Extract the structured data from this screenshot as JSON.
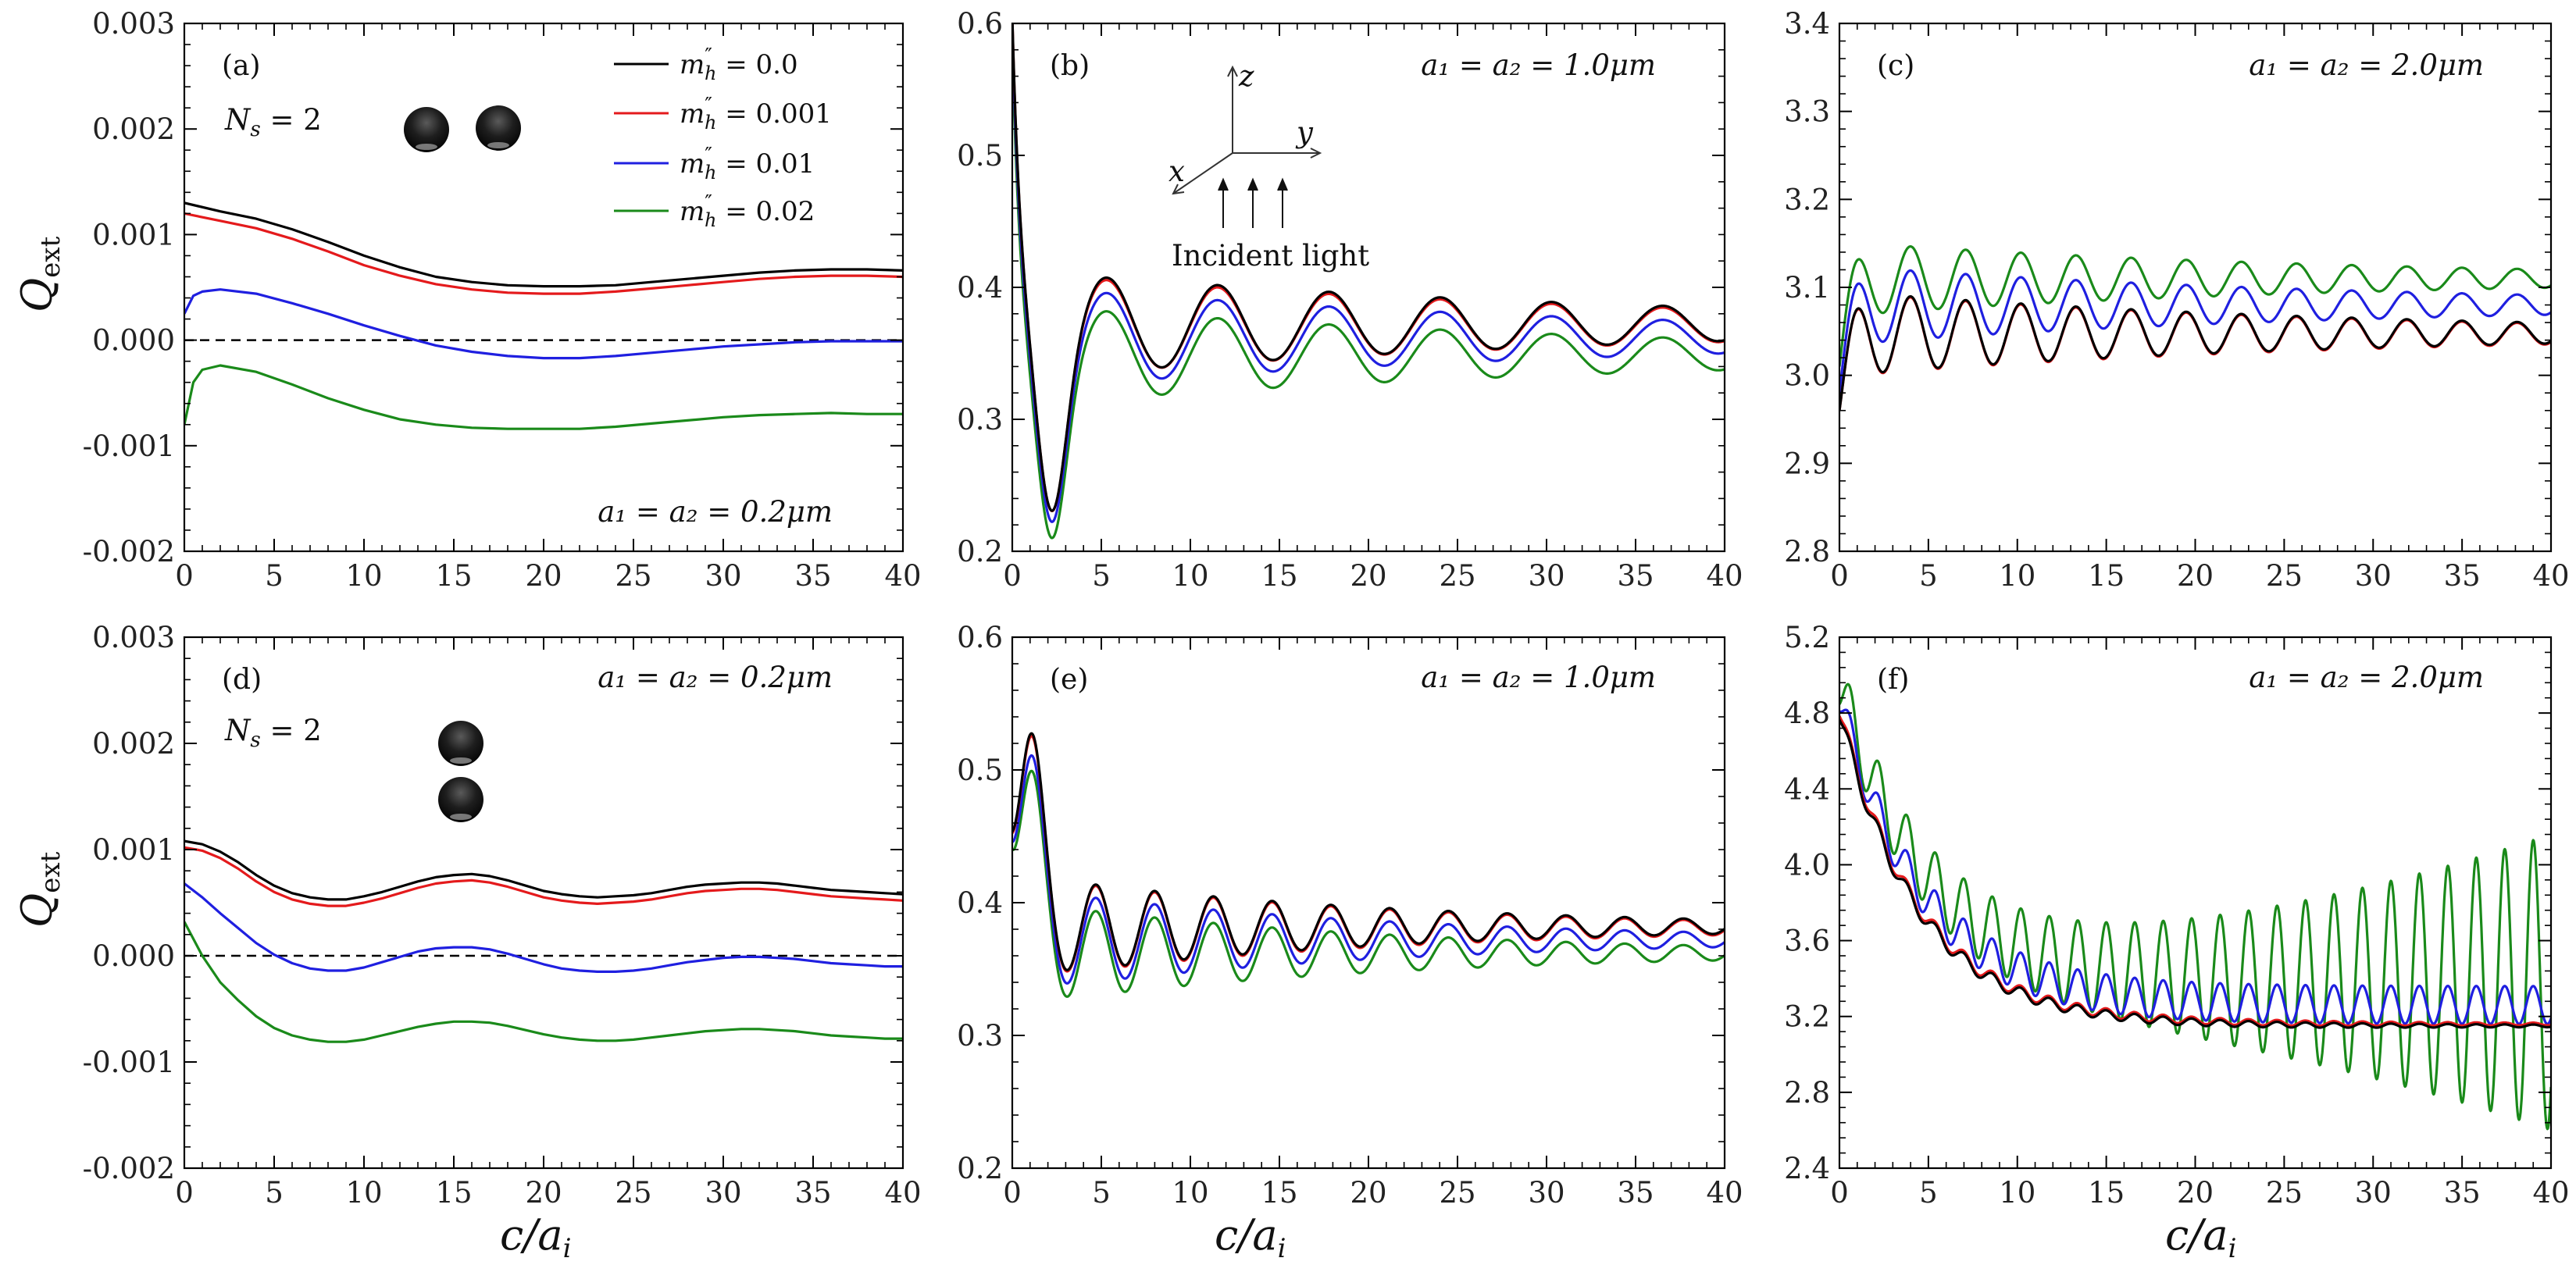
{
  "figure": {
    "ylabel_main": "Q",
    "ylabel_sub": "ext",
    "xlabel_main": "c/a",
    "xlabel_sub": "i",
    "ns_main": "N",
    "ns_sub": "s",
    "ns_rest": " = 2",
    "inset_axis_x": "x",
    "inset_axis_y": "y",
    "inset_axis_z": "z",
    "inset_incident": "Incident light",
    "legend_entries": [
      {
        "label_main": "m",
        "label_sup": "″",
        "label_sub": "h",
        "label_value": " = 0.0",
        "color": "#000000"
      },
      {
        "label_main": "m",
        "label_sup": "″",
        "label_sub": "h",
        "label_value": " = 0.001",
        "color": "#e41a1c"
      },
      {
        "label_main": "m",
        "label_sup": "″",
        "label_sub": "h",
        "label_value": " = 0.01",
        "color": "#1f1fe0"
      },
      {
        "label_main": "m",
        "label_sup": "″",
        "label_sub": "h",
        "label_value": " = 0.02",
        "color": "#1a8a1a"
      }
    ]
  },
  "chart_data": [
    {
      "type": "line",
      "panel": "(a)",
      "radius": "a₁ = a₂ = 0.2μm",
      "xlim": [
        0,
        40
      ],
      "ylim": [
        -0.002,
        0.003
      ],
      "xticks": [
        "0",
        "5",
        "10",
        "15",
        "20",
        "25",
        "30",
        "35",
        "40"
      ],
      "yticks": [
        "-0.002",
        "-0.001",
        "0.000",
        "0.001",
        "0.002",
        "0.003"
      ],
      "zero_line": true,
      "series": [
        {
          "name": "m''_h = 0.0",
          "color": "#000000",
          "x": [
            0,
            2,
            4,
            6,
            8,
            10,
            12,
            14,
            16,
            18,
            20,
            22,
            24,
            26,
            28,
            30,
            32,
            34,
            36,
            38,
            40
          ],
          "y": [
            0.0013,
            0.00122,
            0.00115,
            0.00105,
            0.00093,
            0.0008,
            0.00069,
            0.0006,
            0.00055,
            0.00052,
            0.00051,
            0.00051,
            0.00052,
            0.00055,
            0.00058,
            0.00061,
            0.00064,
            0.00066,
            0.00067,
            0.00067,
            0.00066
          ]
        },
        {
          "name": "m''_h = 0.001",
          "color": "#e41a1c",
          "x": [
            0,
            2,
            4,
            6,
            8,
            10,
            12,
            14,
            16,
            18,
            20,
            22,
            24,
            26,
            28,
            30,
            32,
            34,
            36,
            38,
            40
          ],
          "y": [
            0.0012,
            0.00113,
            0.00106,
            0.00096,
            0.00084,
            0.00071,
            0.00061,
            0.00053,
            0.00048,
            0.00045,
            0.00044,
            0.00044,
            0.00046,
            0.00049,
            0.00052,
            0.00055,
            0.00058,
            0.0006,
            0.00061,
            0.00061,
            0.0006
          ]
        },
        {
          "name": "m''_h = 0.01",
          "color": "#1f1fe0",
          "x": [
            0,
            0.5,
            1,
            2,
            4,
            6,
            8,
            10,
            12,
            14,
            16,
            18,
            20,
            22,
            24,
            26,
            28,
            30,
            32,
            34,
            36,
            38,
            40
          ],
          "y": [
            0.00025,
            0.00042,
            0.00046,
            0.00048,
            0.00044,
            0.00035,
            0.00025,
            0.00014,
            4e-05,
            -5e-05,
            -0.00011,
            -0.00015,
            -0.00017,
            -0.00017,
            -0.00015,
            -0.00012,
            -9e-05,
            -6e-05,
            -4e-05,
            -2e-05,
            -1e-05,
            -1e-05,
            -1e-05
          ]
        },
        {
          "name": "m''_h = 0.02",
          "color": "#1a8a1a",
          "x": [
            0,
            0.5,
            1,
            2,
            4,
            6,
            8,
            10,
            12,
            14,
            16,
            18,
            20,
            22,
            24,
            26,
            28,
            30,
            32,
            34,
            36,
            38,
            40
          ],
          "y": [
            -0.0008,
            -0.0004,
            -0.00028,
            -0.00024,
            -0.0003,
            -0.00042,
            -0.00055,
            -0.00066,
            -0.00075,
            -0.0008,
            -0.00083,
            -0.00084,
            -0.00084,
            -0.00084,
            -0.00082,
            -0.00079,
            -0.00076,
            -0.00073,
            -0.00071,
            -0.0007,
            -0.00069,
            -0.0007,
            -0.0007
          ]
        }
      ]
    },
    {
      "type": "line",
      "panel": "(b)",
      "radius": "a₁ = a₂ = 1.0μm",
      "xlim": [
        0,
        40
      ],
      "ylim": [
        0.2,
        0.6
      ],
      "xticks": [
        "0",
        "5",
        "10",
        "15",
        "20",
        "25",
        "30",
        "35",
        "40"
      ],
      "yticks": [
        "0.2",
        "0.3",
        "0.4",
        "0.5",
        "0.6"
      ],
      "zero_line": false,
      "wave": {
        "mode": "lowdamp",
        "A0": 0.235,
        "decay": 2.2,
        "kick": 0.11,
        "period": 6.25,
        "damp": 0.03
      },
      "series": [
        {
          "name": "m''_h = 0.0",
          "color": "#000000",
          "base": 0.372,
          "amp": 0.042
        },
        {
          "name": "m''_h = 0.001",
          "color": "#e41a1c",
          "base": 0.371,
          "amp": 0.041
        },
        {
          "name": "m''_h = 0.01",
          "color": "#1f1fe0",
          "base": 0.362,
          "amp": 0.04
        },
        {
          "name": "m''_h = 0.02",
          "color": "#1a8a1a",
          "base": 0.349,
          "amp": 0.039
        }
      ]
    },
    {
      "type": "line",
      "panel": "(c)",
      "radius": "a₁ = a₂ = 2.0μm",
      "xlim": [
        0,
        40
      ],
      "ylim": [
        2.8,
        3.4
      ],
      "xticks": [
        "0",
        "5",
        "10",
        "15",
        "20",
        "25",
        "30",
        "35",
        "40"
      ],
      "yticks": [
        "2.8",
        "2.9",
        "3.0",
        "3.1",
        "3.2",
        "3.3",
        "3.4"
      ],
      "zero_line": false,
      "wave": {
        "mode": "osc",
        "period": 3.1,
        "rise": 0.5,
        "damp": 0.035
      },
      "series": [
        {
          "name": "m''_h = 0.0",
          "color": "#000000",
          "base": 3.048,
          "amp": 0.048,
          "start": 2.96
        },
        {
          "name": "m''_h = 0.001",
          "color": "#e41a1c",
          "base": 3.047,
          "amp": 0.048,
          "start": 2.96
        },
        {
          "name": "m''_h = 0.01",
          "color": "#1f1fe0",
          "base": 3.08,
          "amp": 0.045,
          "start": 2.98
        },
        {
          "name": "m''_h = 0.02",
          "color": "#1a8a1a",
          "base": 3.11,
          "amp": 0.042,
          "start": 3.01
        }
      ]
    },
    {
      "type": "line",
      "panel": "(d)",
      "radius": "a₁ = a₂ = 0.2μm",
      "xlim": [
        0,
        40
      ],
      "ylim": [
        -0.002,
        0.003
      ],
      "xticks": [
        "0",
        "5",
        "10",
        "15",
        "20",
        "25",
        "30",
        "35",
        "40"
      ],
      "yticks": [
        "-0.002",
        "-0.001",
        "0.000",
        "0.001",
        "0.002",
        "0.003"
      ],
      "zero_line": true,
      "series": [
        {
          "name": "m''_h = 0.0",
          "color": "#000000",
          "x": [
            0,
            1,
            2,
            3,
            4,
            5,
            6,
            7,
            8,
            9,
            10,
            11,
            12,
            13,
            14,
            15,
            16,
            17,
            18,
            19,
            20,
            21,
            22,
            23,
            24,
            25,
            26,
            27,
            28,
            29,
            30,
            31,
            32,
            33,
            34,
            35,
            36,
            37,
            38,
            39,
            40
          ],
          "y": [
            0.00108,
            0.00105,
            0.00098,
            0.00088,
            0.00076,
            0.00066,
            0.00059,
            0.00055,
            0.00053,
            0.00053,
            0.00056,
            0.0006,
            0.00065,
            0.0007,
            0.00074,
            0.00076,
            0.00077,
            0.00075,
            0.00071,
            0.00066,
            0.00061,
            0.00058,
            0.00056,
            0.00055,
            0.00056,
            0.00057,
            0.00059,
            0.00062,
            0.00065,
            0.00067,
            0.00068,
            0.00069,
            0.00069,
            0.00068,
            0.00066,
            0.00064,
            0.00062,
            0.00061,
            0.0006,
            0.00059,
            0.00058
          ]
        },
        {
          "name": "m''_h = 0.001",
          "color": "#e41a1c",
          "x": [
            0,
            1,
            2,
            3,
            4,
            5,
            6,
            7,
            8,
            9,
            10,
            11,
            12,
            13,
            14,
            15,
            16,
            17,
            18,
            19,
            20,
            21,
            22,
            23,
            24,
            25,
            26,
            27,
            28,
            29,
            30,
            31,
            32,
            33,
            34,
            35,
            36,
            37,
            38,
            39,
            40
          ],
          "y": [
            0.00102,
            0.00099,
            0.00092,
            0.00082,
            0.0007,
            0.0006,
            0.00053,
            0.00049,
            0.00047,
            0.00047,
            0.0005,
            0.00054,
            0.00059,
            0.00064,
            0.00068,
            0.0007,
            0.00071,
            0.00069,
            0.00065,
            0.0006,
            0.00055,
            0.00052,
            0.0005,
            0.00049,
            0.0005,
            0.00051,
            0.00053,
            0.00056,
            0.00059,
            0.00061,
            0.00062,
            0.00063,
            0.00063,
            0.00062,
            0.0006,
            0.00058,
            0.00056,
            0.00055,
            0.00054,
            0.00053,
            0.00052
          ]
        },
        {
          "name": "m''_h = 0.01",
          "color": "#1f1fe0",
          "x": [
            0,
            1,
            2,
            3,
            4,
            5,
            6,
            7,
            8,
            9,
            10,
            11,
            12,
            13,
            14,
            15,
            16,
            17,
            18,
            19,
            20,
            21,
            22,
            23,
            24,
            25,
            26,
            27,
            28,
            29,
            30,
            31,
            32,
            33,
            34,
            35,
            36,
            37,
            38,
            39,
            40
          ],
          "y": [
            0.00068,
            0.00055,
            0.0004,
            0.00026,
            0.00012,
            1e-05,
            -7e-05,
            -0.00012,
            -0.00014,
            -0.00014,
            -0.00011,
            -6e-05,
            -1e-05,
            4e-05,
            7e-05,
            8e-05,
            8e-05,
            6e-05,
            2e-05,
            -3e-05,
            -8e-05,
            -0.00012,
            -0.00014,
            -0.00015,
            -0.00015,
            -0.00014,
            -0.00012,
            -9e-05,
            -6e-05,
            -4e-05,
            -2e-05,
            -1e-05,
            -1e-05,
            -2e-05,
            -3e-05,
            -5e-05,
            -7e-05,
            -8e-05,
            -9e-05,
            -0.0001,
            -0.0001
          ]
        },
        {
          "name": "m''_h = 0.02",
          "color": "#1a8a1a",
          "x": [
            0,
            1,
            2,
            3,
            4,
            5,
            6,
            7,
            8,
            9,
            10,
            11,
            12,
            13,
            14,
            15,
            16,
            17,
            18,
            19,
            20,
            21,
            22,
            23,
            24,
            25,
            26,
            27,
            28,
            29,
            30,
            31,
            32,
            33,
            34,
            35,
            36,
            37,
            38,
            39,
            40
          ],
          "y": [
            0.00032,
            0.0,
            -0.00025,
            -0.00042,
            -0.00057,
            -0.00068,
            -0.00075,
            -0.00079,
            -0.00081,
            -0.00081,
            -0.00079,
            -0.00075,
            -0.00071,
            -0.00067,
            -0.00064,
            -0.00062,
            -0.00062,
            -0.00063,
            -0.00066,
            -0.0007,
            -0.00074,
            -0.00077,
            -0.00079,
            -0.0008,
            -0.0008,
            -0.00079,
            -0.00077,
            -0.00075,
            -0.00073,
            -0.00071,
            -0.0007,
            -0.00069,
            -0.00069,
            -0.0007,
            -0.00071,
            -0.00073,
            -0.00075,
            -0.00076,
            -0.00077,
            -0.00078,
            -0.00078
          ]
        }
      ]
    },
    {
      "type": "line",
      "panel": "(e)",
      "radius": "a₁ = a₂ = 1.0μm",
      "xlim": [
        0,
        40
      ],
      "ylim": [
        0.2,
        0.6
      ],
      "xticks": [
        "0",
        "5",
        "10",
        "15",
        "20",
        "25",
        "30",
        "35",
        "40"
      ],
      "yticks": [
        "0.2",
        "0.3",
        "0.4",
        "0.5",
        "0.6"
      ],
      "zero_line": false,
      "wave": {
        "mode": "peak",
        "period": 3.3,
        "damp": 0.05,
        "peakx": 1.0,
        "peakw": 0.9
      },
      "series": [
        {
          "name": "m''_h = 0.0",
          "color": "#000000",
          "base": 0.382,
          "amp": 0.025,
          "start": 0.437,
          "peak": 0.515
        },
        {
          "name": "m''_h = 0.001",
          "color": "#e41a1c",
          "base": 0.381,
          "amp": 0.025,
          "start": 0.436,
          "peak": 0.513
        },
        {
          "name": "m''_h = 0.01",
          "color": "#1f1fe0",
          "base": 0.372,
          "amp": 0.025,
          "start": 0.434,
          "peak": 0.498
        },
        {
          "name": "m''_h = 0.02",
          "color": "#1a8a1a",
          "base": 0.362,
          "amp": 0.025,
          "start": 0.432,
          "peak": 0.486
        }
      ]
    },
    {
      "type": "line",
      "panel": "(f)",
      "radius": "a₁ = a₂ = 2.0μm",
      "xlim": [
        0,
        40
      ],
      "ylim": [
        2.4,
        5.2
      ],
      "xticks": [
        "0",
        "5",
        "10",
        "15",
        "20",
        "25",
        "30",
        "35",
        "40"
      ],
      "yticks": [
        "2.4",
        "2.8",
        "3.2",
        "3.6",
        "4.0",
        "4.4",
        "4.8",
        "5.2"
      ],
      "zero_line": false,
      "wave": {
        "mode": "decaygrow",
        "period": 1.6
      },
      "series": [
        {
          "name": "m''_h = 0.0",
          "color": "#000000",
          "asym": 3.15,
          "start": 4.8,
          "tau": 4.5,
          "amp0": 0.05,
          "ampdecay": 0.05,
          "grow": 0.0
        },
        {
          "name": "m''_h = 0.001",
          "color": "#e41a1c",
          "asym": 3.16,
          "start": 4.82,
          "tau": 4.5,
          "amp0": 0.05,
          "ampdecay": 0.05,
          "grow": 0.0
        },
        {
          "name": "m''_h = 0.01",
          "color": "#1f1fe0",
          "asym": 3.26,
          "start": 4.88,
          "tau": 4.6,
          "amp0": 0.1,
          "ampdecay": 0.0,
          "grow": 0.0
        },
        {
          "name": "m''_h = 0.02",
          "color": "#1a8a1a",
          "asym": 3.38,
          "start": 4.96,
          "tau": 4.8,
          "amp0": 0.16,
          "ampdecay": 0.0,
          "grow": 0.0155
        }
      ]
    }
  ]
}
